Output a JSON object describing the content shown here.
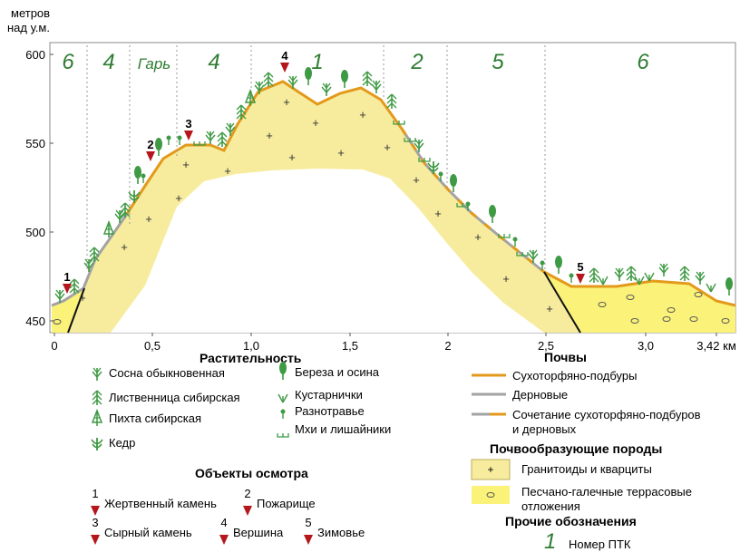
{
  "axis": {
    "y_unit_line1": "метров",
    "y_unit_line2": "над у.м.",
    "y_ticks": [
      "600",
      "550",
      "500",
      "450"
    ],
    "x_ticks": [
      "0",
      "0,5",
      "1,0",
      "1,5",
      "2",
      "2,5",
      "3,0",
      "3,42 км"
    ]
  },
  "zones": [
    {
      "label": "6",
      "italic": false
    },
    {
      "label": "4",
      "italic": false
    },
    {
      "label": "Гарь",
      "italic": true
    },
    {
      "label": "4",
      "italic": false
    },
    {
      "label": "1",
      "italic": false
    },
    {
      "label": "2",
      "italic": false
    },
    {
      "label": "5",
      "italic": false
    },
    {
      "label": "6",
      "italic": false
    }
  ],
  "markers": [
    "1",
    "2",
    "3",
    "4",
    "5"
  ],
  "colors": {
    "granitoid_fill": "#f7ec9e",
    "terrace_fill": "#fbf27a",
    "soil_podbur": "#e39a1c",
    "soil_sod": "#a0a0a0",
    "tree": "#3f9a44",
    "marker": "#b5161b",
    "zone_label": "#2e7d32"
  },
  "legend": {
    "vegetation": {
      "title": "Растительность",
      "items": [
        {
          "icon": "pine-icon",
          "label": "Сосна обыкновенная"
        },
        {
          "icon": "larch-icon",
          "label": "Лиственница сибирская"
        },
        {
          "icon": "fir-icon",
          "label": "Пихта сибирская"
        },
        {
          "icon": "cedar-icon",
          "label": "Кедр"
        },
        {
          "icon": "birch-icon",
          "label": "Береза и осина"
        },
        {
          "icon": "shrub-icon",
          "label": "Кустарнички"
        },
        {
          "icon": "herb-icon",
          "label": "Разнотравье"
        },
        {
          "icon": "moss-icon",
          "label": "Мхи и лишайники"
        }
      ]
    },
    "objects": {
      "title": "Объекты осмотра",
      "items": [
        {
          "num": "1",
          "label": "Жертвенный камень"
        },
        {
          "num": "2",
          "label": "Пожарище"
        },
        {
          "num": "3",
          "label": "Сырный камень"
        },
        {
          "num": "4",
          "label": "Вершина"
        },
        {
          "num": "5",
          "label": "Зимовье"
        }
      ]
    },
    "soils": {
      "title": "Почвы",
      "items": [
        {
          "label": "Сухоторфяно-подбуры"
        },
        {
          "label": "Дерновые"
        },
        {
          "label": "Сочетание сухоторфяно-подбуров",
          "label2": "и дерновых"
        }
      ]
    },
    "rocks": {
      "title": "Почвообразующие породы",
      "items": [
        {
          "label": "Гранитоиды и кварциты"
        },
        {
          "label": "Песчано-галечные террасовые",
          "label2": "отложения"
        }
      ]
    },
    "other": {
      "title": "Прочие обозначения",
      "items": [
        {
          "symbol": "1",
          "label": "Номер ПТК"
        }
      ]
    }
  }
}
